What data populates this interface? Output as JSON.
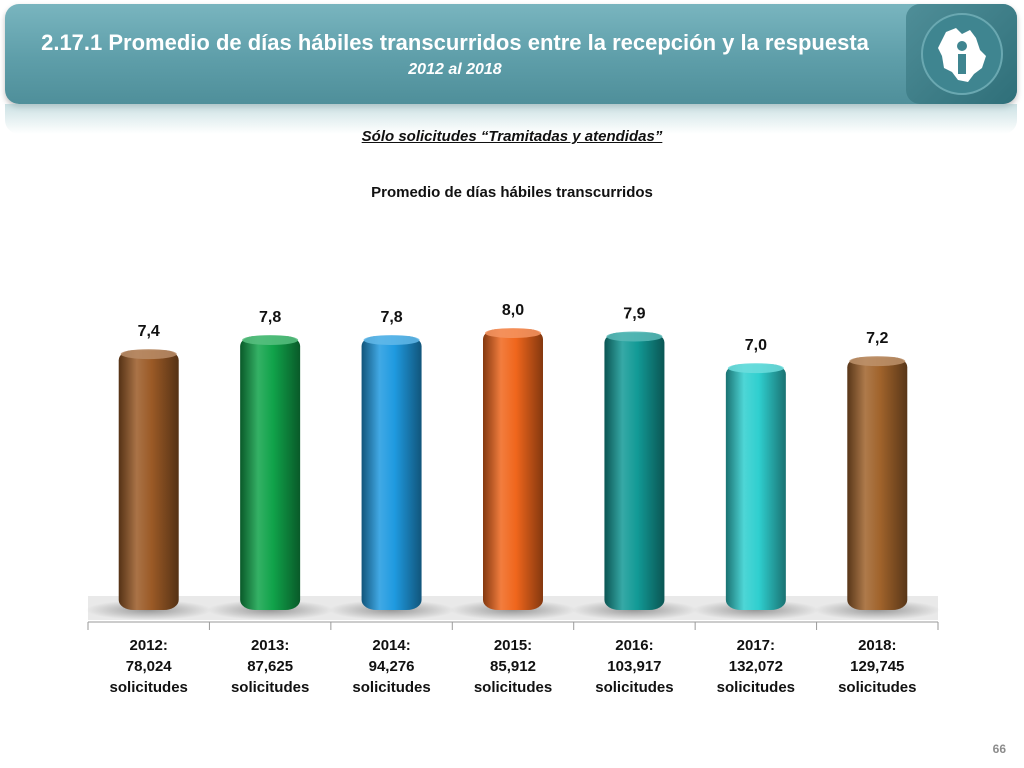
{
  "header": {
    "title": "2.17.1 Promedio de días hábiles transcurridos entre la recepción y la respuesta",
    "subtitle": "2012 al 2018"
  },
  "section_label": "Sólo solicitudes “Tramitadas y atendidas”",
  "page_number": "66",
  "logo_icon": "cdmx-map-info-icon",
  "chart_data": {
    "type": "bar",
    "title": "Promedio de días hábiles transcurridos",
    "categories": [
      [
        "2012:",
        "78,024",
        "solicitudes"
      ],
      [
        "2013:",
        "87,625",
        "solicitudes"
      ],
      [
        "2014:",
        "94,276",
        "solicitudes"
      ],
      [
        "2015:",
        "85,912",
        "solicitudes"
      ],
      [
        "2016:",
        "103,917",
        "solicitudes"
      ],
      [
        "2017:",
        "132,072",
        "solicitudes"
      ],
      [
        "2018:",
        "129,745",
        "solicitudes"
      ]
    ],
    "values": [
      7.4,
      7.8,
      7.8,
      8.0,
      7.9,
      7.0,
      7.2
    ],
    "value_labels": [
      "7,4",
      "7,8",
      "7,8",
      "8,0",
      "7,9",
      "7,0",
      "7,2"
    ],
    "colors": [
      "#9b5a26",
      "#10a34a",
      "#1f9ae0",
      "#f0661c",
      "#129a96",
      "#2fcfcf",
      "#a0632b"
    ],
    "ylim": [
      0,
      8.2
    ],
    "grid": false,
    "legend": "none"
  }
}
